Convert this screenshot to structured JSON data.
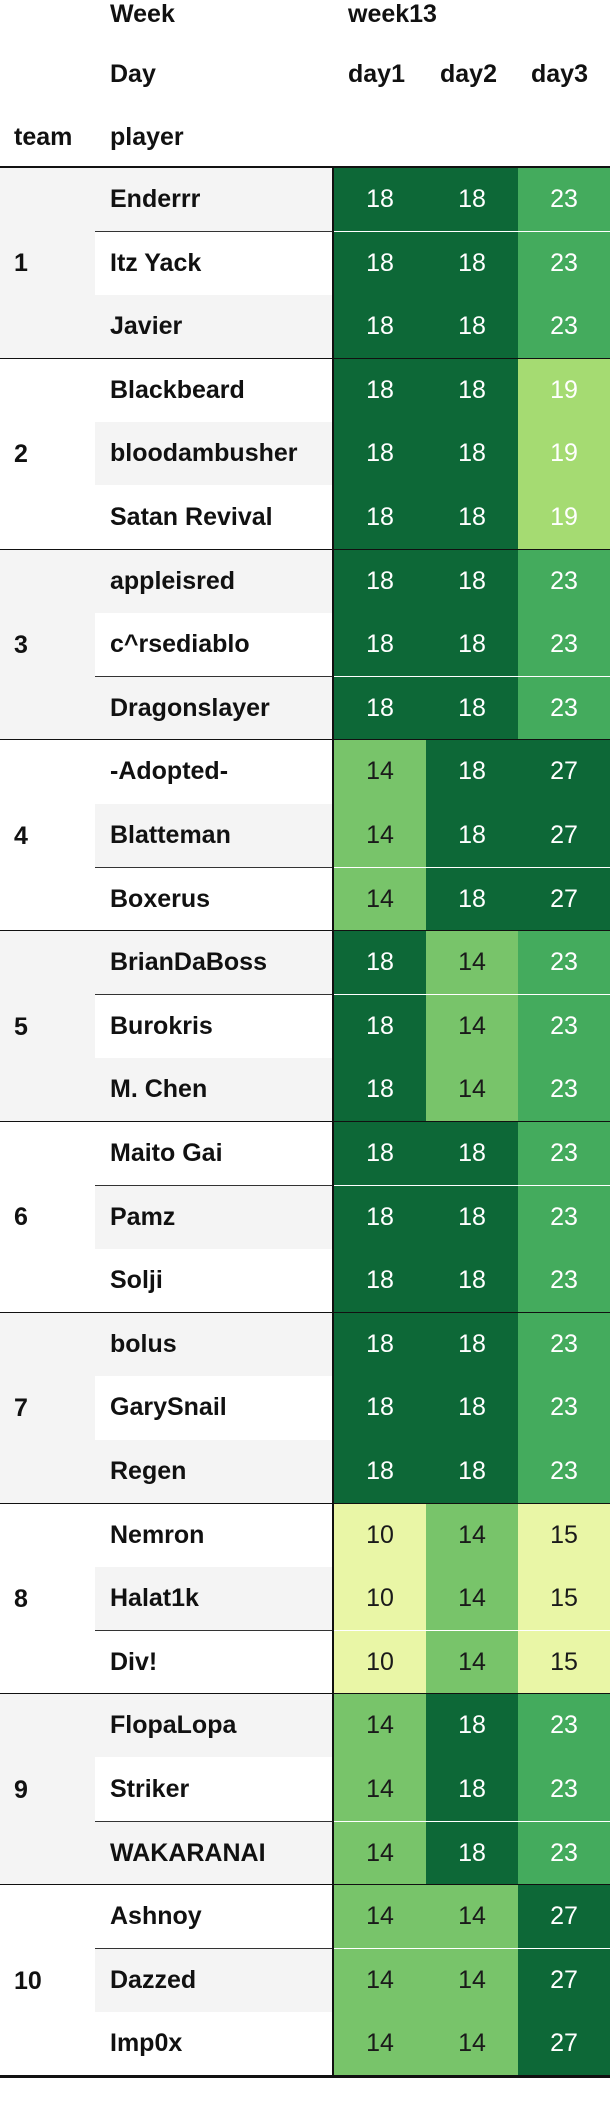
{
  "header": {
    "week_label": "Week",
    "week_value": "week13",
    "day_label": "Day",
    "days": [
      "day1",
      "day2",
      "day3"
    ],
    "team_label": "team",
    "player_label": "player"
  },
  "colors": {
    "10": "#e9f6a6",
    "14": "#78c46a",
    "15": "#e9f6a6",
    "18": "#0d6837",
    "19": "#a5db72",
    "23": "#44ab5d",
    "27": "#0d6837",
    "dark_text_threshold": 16
  },
  "chart_data": {
    "type": "table",
    "title": "",
    "columns": [
      "day1",
      "day2",
      "day3"
    ],
    "teams": [
      {
        "team": "1",
        "players": [
          {
            "name": "Enderrr",
            "values": [
              18,
              18,
              23
            ]
          },
          {
            "name": "Itz Yack",
            "values": [
              18,
              18,
              23
            ]
          },
          {
            "name": "Javier",
            "values": [
              18,
              18,
              23
            ]
          }
        ]
      },
      {
        "team": "2",
        "players": [
          {
            "name": "Blackbeard",
            "values": [
              18,
              18,
              19
            ]
          },
          {
            "name": "bloodambusher",
            "values": [
              18,
              18,
              19
            ]
          },
          {
            "name": "Satan Revival",
            "values": [
              18,
              18,
              19
            ]
          }
        ]
      },
      {
        "team": "3",
        "players": [
          {
            "name": "appleisred",
            "values": [
              18,
              18,
              23
            ]
          },
          {
            "name": "c^rsediablo",
            "values": [
              18,
              18,
              23
            ]
          },
          {
            "name": "Dragonslayer",
            "values": [
              18,
              18,
              23
            ]
          }
        ]
      },
      {
        "team": "4",
        "players": [
          {
            "name": "-Adopted-",
            "values": [
              14,
              18,
              27
            ]
          },
          {
            "name": "Blatteman",
            "values": [
              14,
              18,
              27
            ]
          },
          {
            "name": "Boxerus",
            "values": [
              14,
              18,
              27
            ]
          }
        ]
      },
      {
        "team": "5",
        "players": [
          {
            "name": "BrianDaBoss",
            "values": [
              18,
              14,
              23
            ]
          },
          {
            "name": "Burokris",
            "values": [
              18,
              14,
              23
            ]
          },
          {
            "name": "M. Chen",
            "values": [
              18,
              14,
              23
            ]
          }
        ]
      },
      {
        "team": "6",
        "players": [
          {
            "name": "Maito Gai",
            "values": [
              18,
              18,
              23
            ]
          },
          {
            "name": "Pamz",
            "values": [
              18,
              18,
              23
            ]
          },
          {
            "name": "Solji",
            "values": [
              18,
              18,
              23
            ]
          }
        ]
      },
      {
        "team": "7",
        "players": [
          {
            "name": "bolus",
            "values": [
              18,
              18,
              23
            ]
          },
          {
            "name": "GarySnail",
            "values": [
              18,
              18,
              23
            ]
          },
          {
            "name": "Regen",
            "values": [
              18,
              18,
              23
            ]
          }
        ]
      },
      {
        "team": "8",
        "players": [
          {
            "name": "Nemron",
            "values": [
              10,
              14,
              15
            ]
          },
          {
            "name": "Halat1k",
            "values": [
              10,
              14,
              15
            ]
          },
          {
            "name": "Div!",
            "values": [
              10,
              14,
              15
            ]
          }
        ]
      },
      {
        "team": "9",
        "players": [
          {
            "name": "FlopaLopa",
            "values": [
              14,
              18,
              23
            ]
          },
          {
            "name": "Striker",
            "values": [
              14,
              18,
              23
            ]
          },
          {
            "name": "WAKARANAI",
            "values": [
              14,
              18,
              23
            ]
          }
        ]
      },
      {
        "team": "10",
        "players": [
          {
            "name": "Ashnoy",
            "values": [
              14,
              14,
              27
            ]
          },
          {
            "name": "Dazzed",
            "values": [
              14,
              14,
              27
            ]
          },
          {
            "name": "Imp0x",
            "values": [
              14,
              14,
              27
            ]
          }
        ]
      }
    ]
  }
}
